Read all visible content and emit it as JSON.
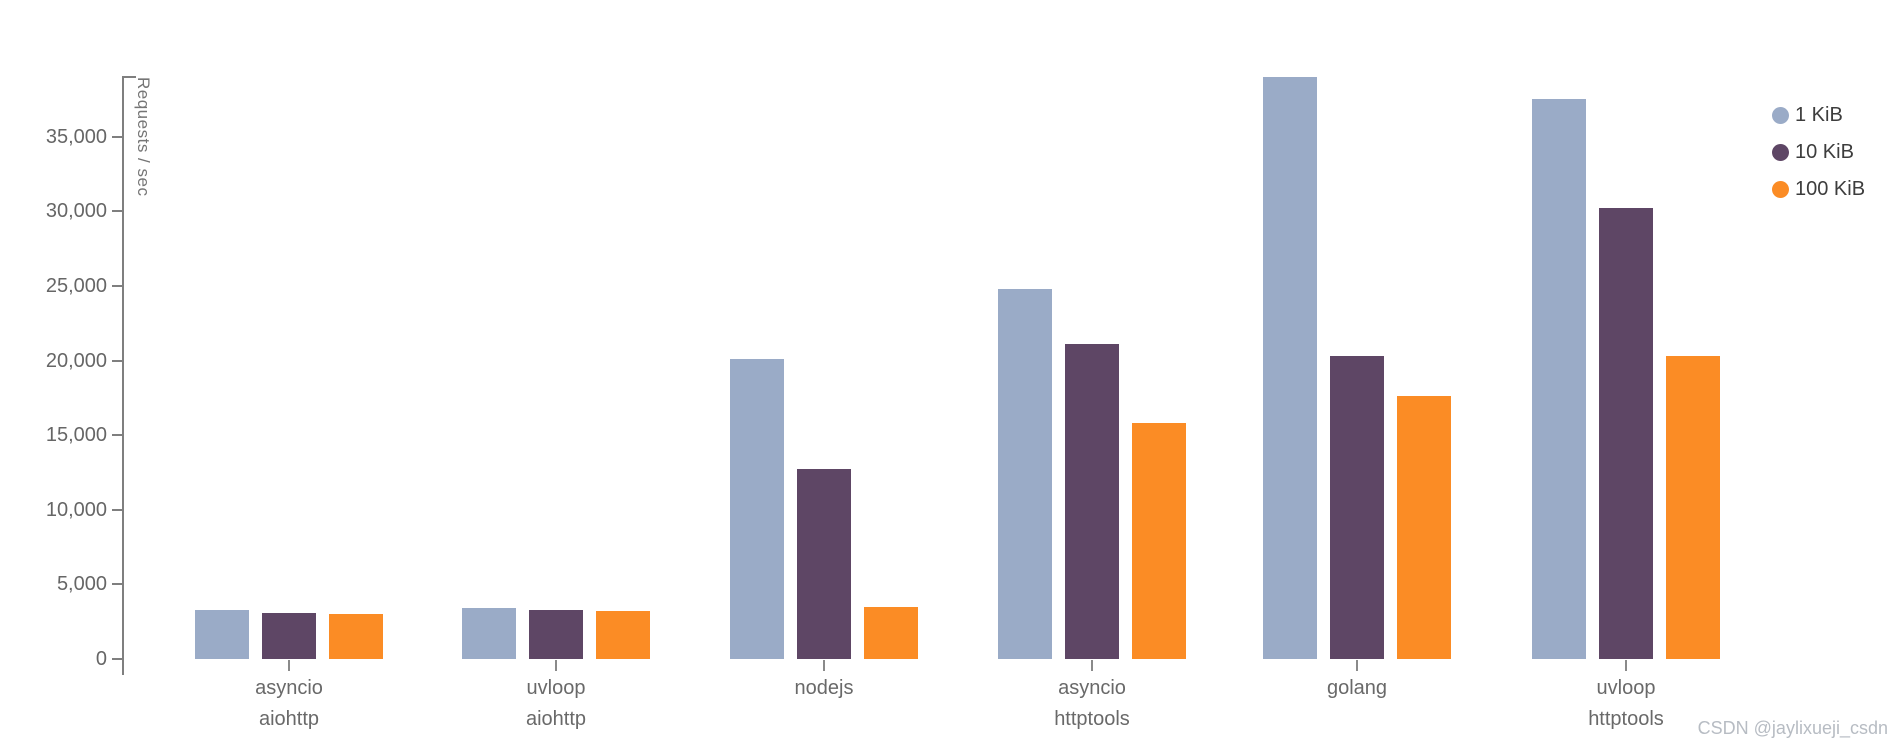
{
  "watermark": "CSDN @jaylixueji_csdn",
  "colors": {
    "series_1kib": "#9aabc7",
    "series_10kib": "#5e4665",
    "series_100kib": "#fb8c25",
    "axis": "#7f7f7f",
    "tick_text": "#666666",
    "category_text": "#696969",
    "legend_text": "#3d3d3d",
    "watermark_text": "#b7bcc3",
    "background": "#ffffff"
  },
  "chart_data": {
    "type": "bar",
    "title": "",
    "xlabel": "",
    "ylabel": "Requests / sec",
    "ylim": [
      0,
      39000
    ],
    "yticks": [
      0,
      5000,
      10000,
      15000,
      20000,
      25000,
      30000,
      35000
    ],
    "grid": false,
    "legend_position": "top-right",
    "categories": [
      "asyncio\naiohttp",
      "uvloop\naiohttp",
      "nodejs",
      "asyncio\nhttptools",
      "golang",
      "uvloop\nhttptools"
    ],
    "series": [
      {
        "name": "1 KiB",
        "color": "#9aabc7",
        "values": [
          3300,
          3450,
          20100,
          24800,
          39000,
          37500
        ]
      },
      {
        "name": "10 KiB",
        "color": "#5e4665",
        "values": [
          3100,
          3250,
          12700,
          21100,
          20300,
          30200
        ]
      },
      {
        "name": "100 KiB",
        "color": "#fb8c25",
        "values": [
          3000,
          3200,
          3500,
          15800,
          17600,
          20300
        ]
      }
    ]
  }
}
